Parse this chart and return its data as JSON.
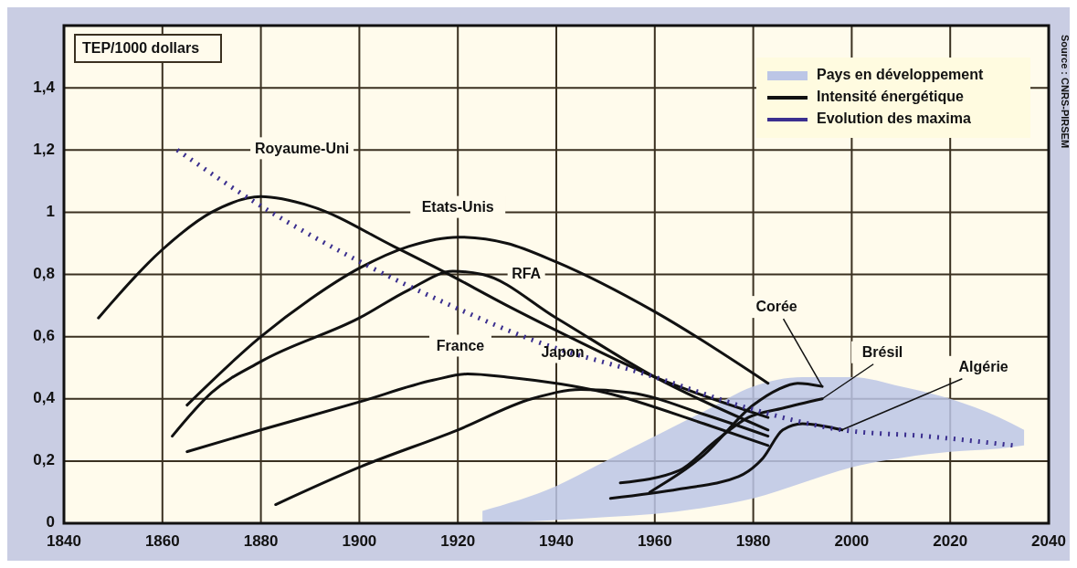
{
  "chart_data": {
    "type": "line",
    "ylabel": "TEP/1000 dollars",
    "xlim": [
      1840,
      2040
    ],
    "xticks": [
      1840,
      1860,
      1880,
      1900,
      1920,
      1940,
      1960,
      1980,
      2000,
      2020,
      2040
    ],
    "ylim": [
      0,
      1.6
    ],
    "yticks": [
      0,
      {
        "value": 0.2,
        "label": "0,2"
      },
      {
        "value": 0.4,
        "label": "0,4"
      },
      {
        "value": 0.6,
        "label": "0,6"
      },
      {
        "value": 0.8,
        "label": "0,8"
      },
      1,
      {
        "value": 1.2,
        "label": "1,2"
      },
      {
        "value": 1.4,
        "label": "1,4"
      }
    ],
    "grid": true,
    "legend": "top right",
    "series": [
      {
        "name": "Pays en développement",
        "type": "area",
        "color": "#bcc6e6",
        "x": [
          1925,
          1940,
          1950,
          1960,
          1970,
          1980,
          1990,
          2000,
          2010,
          2020,
          2030,
          2035
        ],
        "lower": [
          0,
          0.01,
          0.02,
          0.03,
          0.05,
          0.08,
          0.13,
          0.18,
          0.21,
          0.23,
          0.24,
          0.25
        ],
        "upper": [
          0.04,
          0.12,
          0.2,
          0.28,
          0.36,
          0.44,
          0.47,
          0.47,
          0.44,
          0.4,
          0.34,
          0.3
        ],
        "values": [
          null,
          null,
          null,
          null,
          null,
          null,
          null,
          null,
          null,
          null,
          null,
          null
        ]
      },
      {
        "name": "Intensité énergétique",
        "color": "#111111",
        "x": [
          1847,
          1860,
          1870,
          1880,
          1890,
          1907,
          1917,
          1930,
          1940,
          1960,
          1983
        ],
        "values": [
          0.66,
          0.88,
          1.0,
          1.05,
          1.02,
          0.89,
          0.81,
          0.7,
          0.62,
          0.47,
          0.34
        ]
      },
      {
        "color": "#111111",
        "x": [
          1865,
          1880,
          1890,
          1900,
          1910,
          1920,
          1930,
          1940,
          1960,
          1983
        ],
        "values": [
          0.38,
          0.6,
          0.72,
          0.82,
          0.89,
          0.92,
          0.9,
          0.84,
          0.68,
          0.45
        ]
      },
      {
        "color": "#111111",
        "x": [
          1862,
          1870,
          1880,
          1900,
          1910,
          1919,
          1925,
          1940,
          1960,
          1983
        ],
        "values": [
          0.28,
          0.42,
          0.52,
          0.66,
          0.75,
          0.81,
          0.8,
          0.66,
          0.47,
          0.3
        ]
      },
      {
        "color": "#111111",
        "x": [
          1865,
          1880,
          1900,
          1915,
          1922,
          1930,
          1950,
          1970,
          1983
        ],
        "values": [
          0.23,
          0.3,
          0.39,
          0.46,
          0.48,
          0.47,
          0.42,
          0.32,
          0.25
        ]
      },
      {
        "color": "#111111",
        "x": [
          1883,
          1900,
          1920,
          1935,
          1945,
          1955,
          1970,
          1983
        ],
        "values": [
          0.06,
          0.18,
          0.3,
          0.4,
          0.43,
          0.42,
          0.35,
          0.28
        ]
      },
      {
        "color": "#111111",
        "x": [
          1959,
          1970,
          1980,
          1985,
          1989,
          1994
        ],
        "values": [
          0.1,
          0.22,
          0.38,
          0.43,
          0.45,
          0.44
        ]
      },
      {
        "color": "#111111",
        "x": [
          1953,
          1965,
          1972,
          1979,
          1986,
          1994
        ],
        "values": [
          0.13,
          0.17,
          0.26,
          0.34,
          0.37,
          0.4
        ]
      },
      {
        "color": "#111111",
        "x": [
          1951,
          1965,
          1977,
          1982,
          1986,
          1990,
          1998
        ],
        "values": [
          0.08,
          0.11,
          0.15,
          0.21,
          0.3,
          0.32,
          0.3
        ]
      },
      {
        "name": "Evolution des maxima",
        "color": "#3b2f8f",
        "line_style": "dotted",
        "x": [
          1863,
          1880,
          1899,
          1920,
          1935,
          1960,
          1979,
          1998,
          2015,
          2033
        ],
        "values": [
          1.2,
          1.02,
          0.85,
          0.69,
          0.59,
          0.47,
          0.37,
          0.3,
          0.28,
          0.25
        ]
      }
    ],
    "annotations": [
      {
        "text": "Royaume-Uni",
        "x": 1880,
        "y": 1.05
      },
      {
        "text": "Etats-Unis",
        "x": 1920,
        "y": 0.92
      },
      {
        "text": "RFA",
        "x": 1925,
        "y": 0.8
      },
      {
        "text": "France",
        "x": 1922,
        "y": 0.48
      },
      {
        "text": "Japon",
        "x": 1945,
        "y": 0.43
      },
      {
        "text": "Corée",
        "x": 1994,
        "y": 0.44
      },
      {
        "text": "Brésil",
        "x": 1994,
        "y": 0.4
      },
      {
        "text": "Algérie",
        "x": 1998,
        "y": 0.3
      },
      "Source : CNRS-PIRSEM"
    ]
  }
}
